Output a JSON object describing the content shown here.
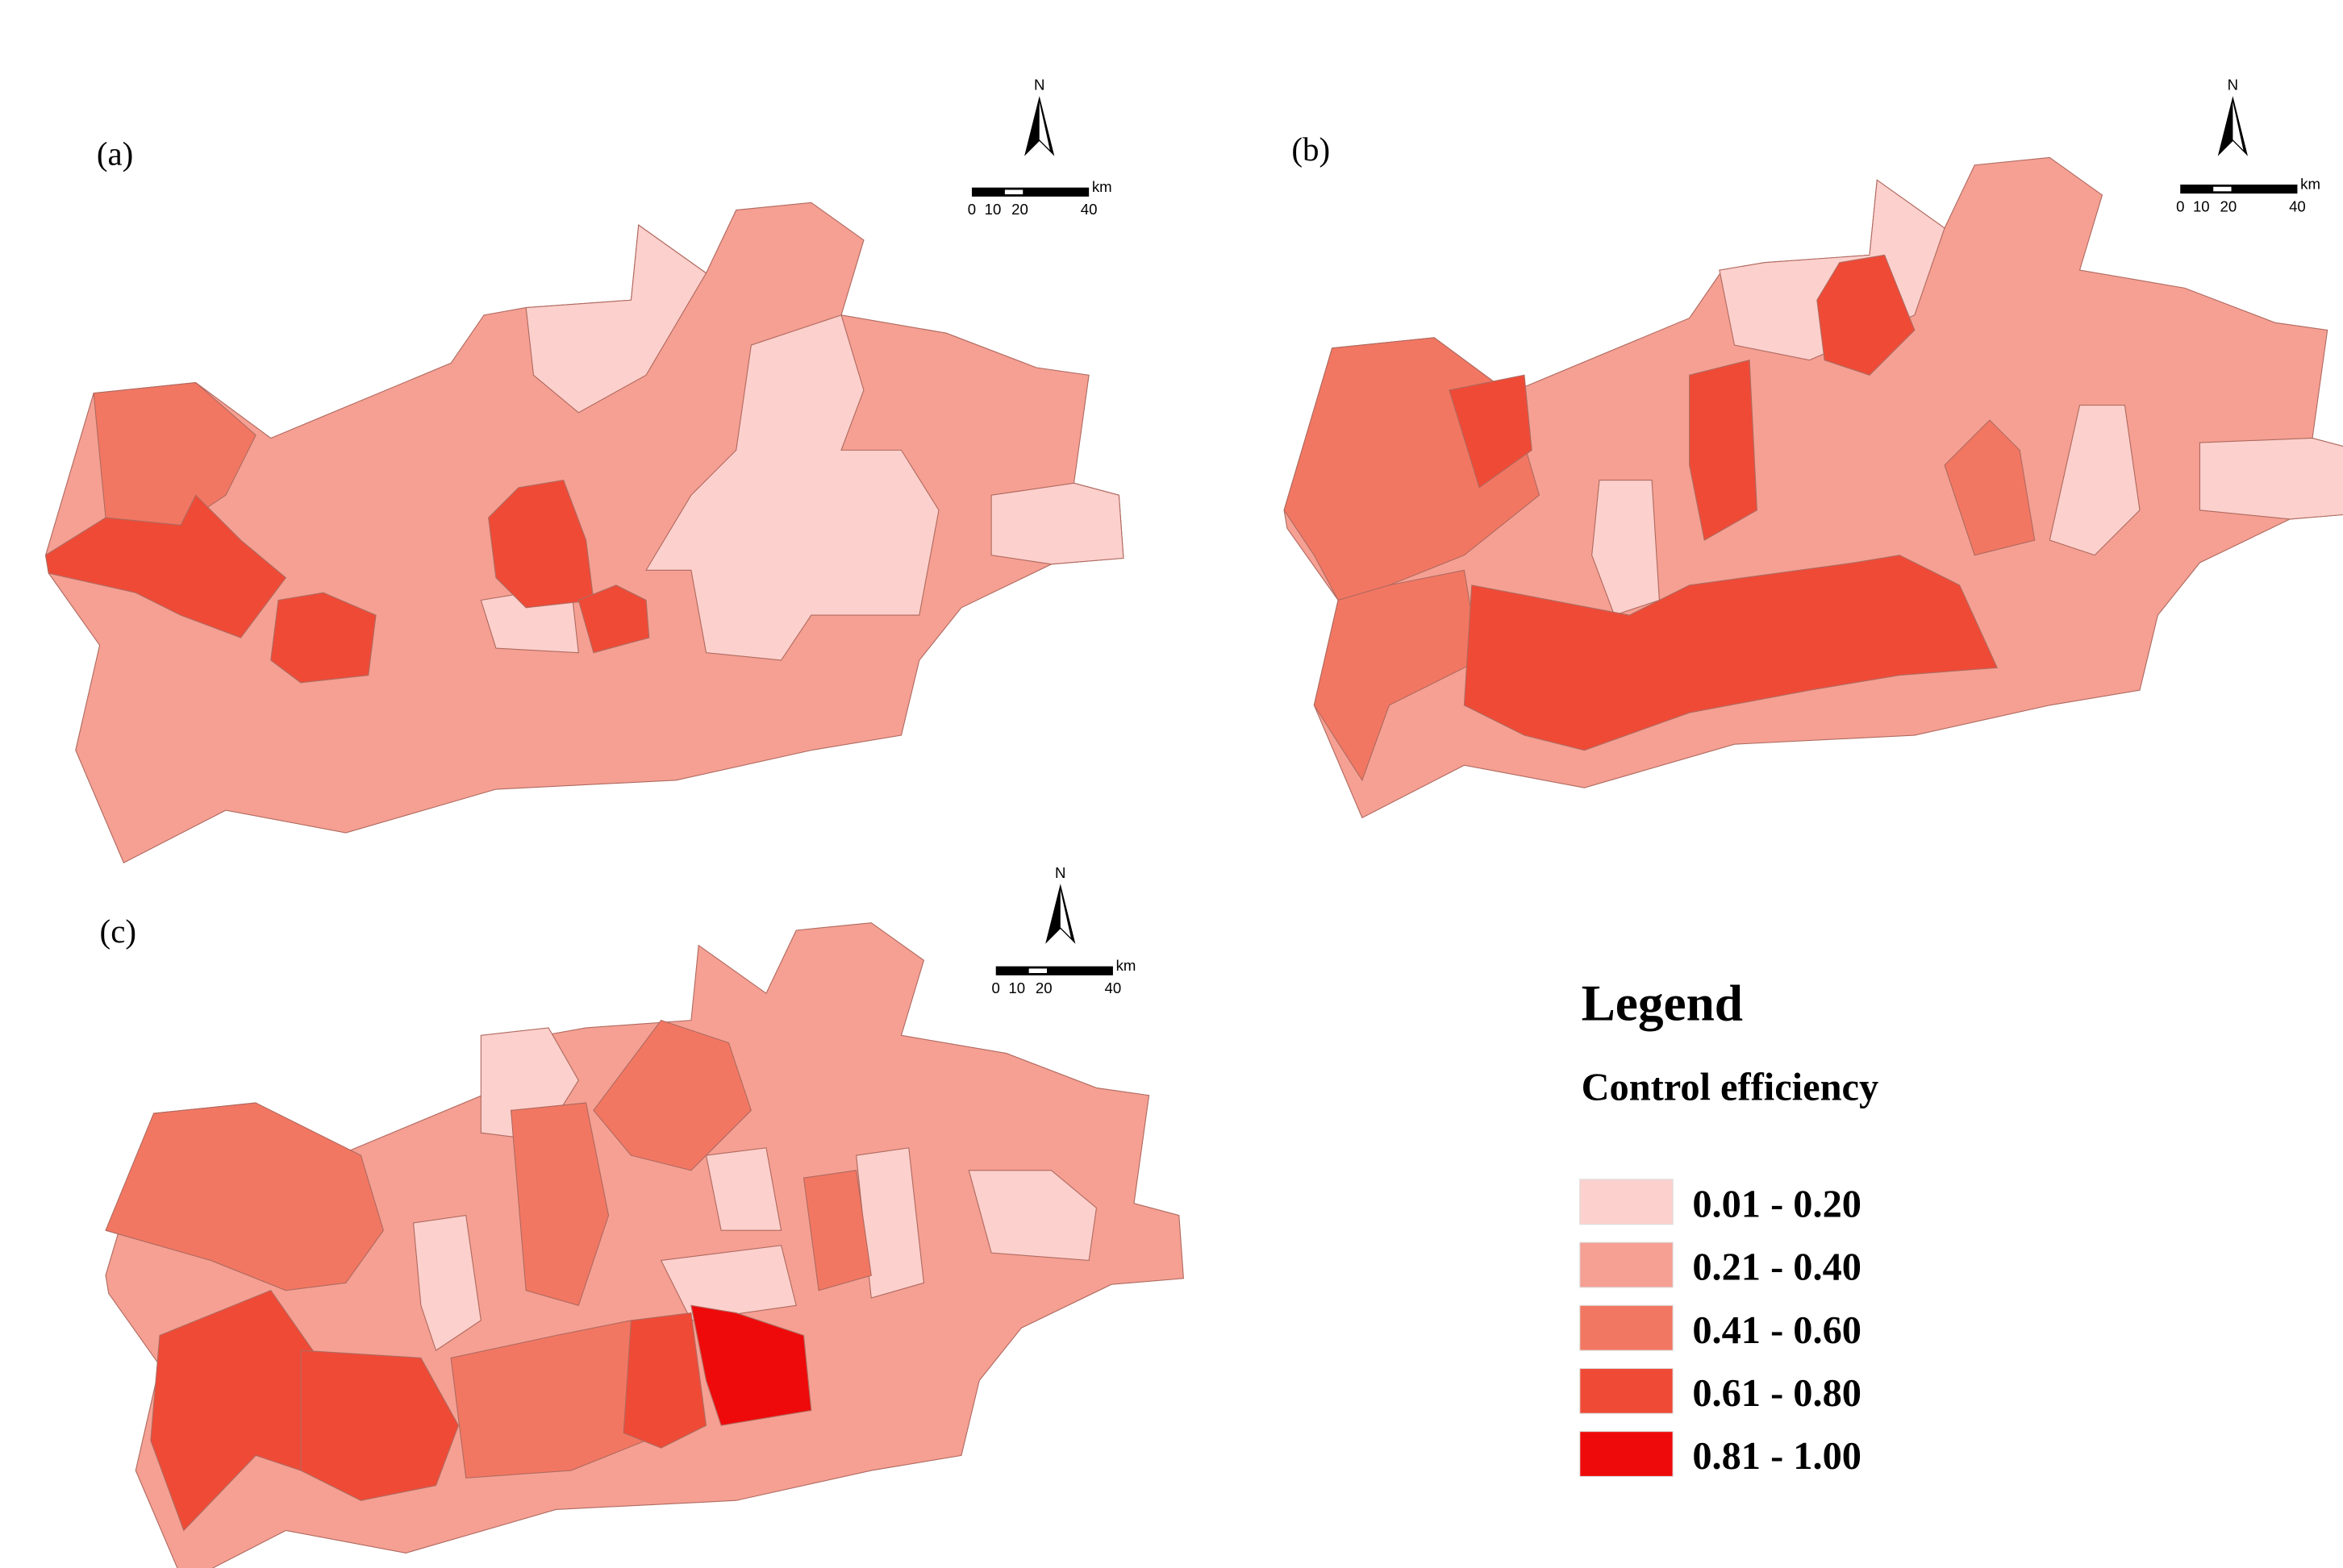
{
  "panels": [
    {
      "label": "(a)",
      "north": "N",
      "scale": {
        "ticks": [
          "0",
          "10",
          "20",
          "40"
        ],
        "unit": "km"
      }
    },
    {
      "label": "(b)",
      "north": "N",
      "scale": {
        "ticks": [
          "0",
          "10",
          "20",
          "40"
        ],
        "unit": "km"
      }
    },
    {
      "label": "(c)",
      "north": "N",
      "scale": {
        "ticks": [
          "0",
          "10",
          "20",
          "40"
        ],
        "unit": "km"
      }
    }
  ],
  "legend": {
    "title": "Legend",
    "subtitle": "Control efficiency",
    "classes": [
      {
        "label": "0.01 - 0.20",
        "color": "#fcd0cc"
      },
      {
        "label": "0.21 - 0.40",
        "color": "#f5a093"
      },
      {
        "label": "0.41 - 0.60",
        "color": "#f27762"
      },
      {
        "label": "0.61 - 0.80",
        "color": "#ef4a36"
      },
      {
        "label": "0.81 - 1.00",
        "color": "#ee0a0a"
      }
    ]
  }
}
